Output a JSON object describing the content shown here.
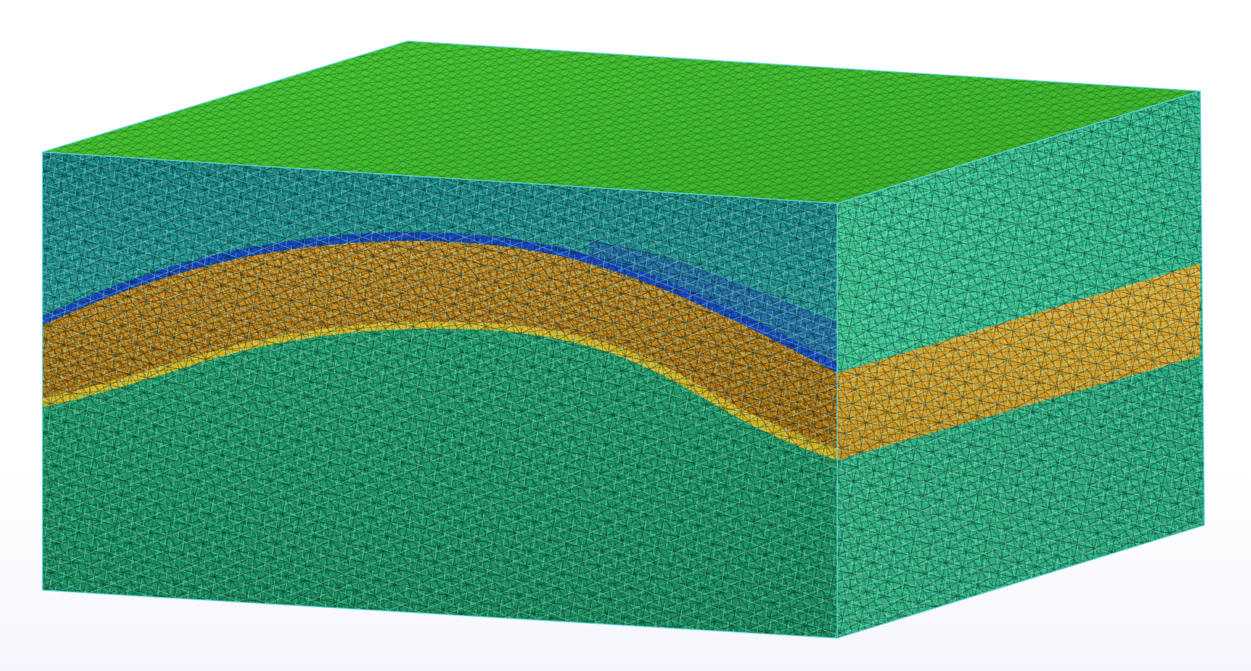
{
  "scene": {
    "object": "layered-block-mesh",
    "view": "3d-perspective",
    "mesh_type": "tetrahedral",
    "layers": [
      {
        "name": "upper-layer",
        "color": "#2fb09a",
        "wire_color": "#59f0d8",
        "edge_color": "#063a48"
      },
      {
        "name": "middle-curved-layer",
        "color": "#c98a16",
        "wire_color": "#ffd24a",
        "edge_color": "#3d2a06"
      },
      {
        "name": "lower-layer",
        "color": "#1f9a5e",
        "wire_color": "#57f2a4",
        "edge_color": "#073a22"
      }
    ],
    "top_face_color": "#46c236",
    "top_face_wire": "#8dff5a",
    "interface_accent": "#1b3fd0",
    "outline_color": "#5bd6e0",
    "background": "#ffffff"
  }
}
